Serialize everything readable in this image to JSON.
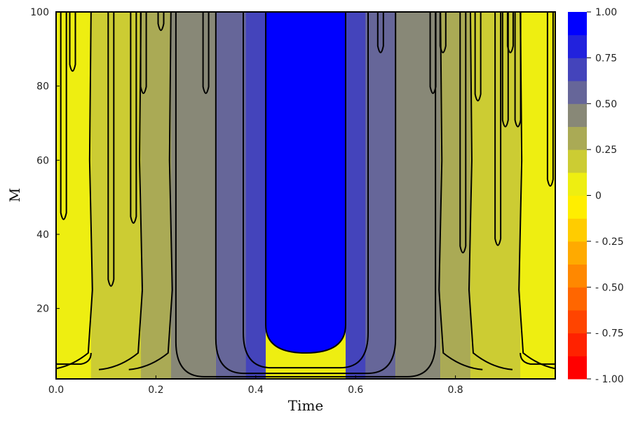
{
  "chart_data": {
    "type": "heatmap",
    "title": "",
    "xlabel": "Time",
    "ylabel": "M",
    "xlim": [
      0,
      1
    ],
    "ylim": [
      1,
      100
    ],
    "x_ticks": [
      0.0,
      0.2,
      0.4,
      0.6,
      0.8
    ],
    "x_tick_labels": [
      "0.0",
      "0.2",
      "0.4",
      "0.6",
      "0.8"
    ],
    "y_ticks": [
      20,
      40,
      60,
      80,
      100
    ],
    "y_tick_labels": [
      "20",
      "40",
      "60",
      "80",
      "100"
    ],
    "grid": false,
    "legend": "none",
    "colorbar": {
      "range": [
        -1,
        1
      ],
      "levels": [
        -1.0,
        -0.875,
        -0.75,
        -0.625,
        -0.5,
        -0.375,
        -0.25,
        -0.125,
        0.0,
        0.125,
        0.25,
        0.375,
        0.5,
        0.625,
        0.75,
        0.875,
        1.0
      ],
      "colors": [
        "#ff0000",
        "#ff2200",
        "#ff4400",
        "#ff6600",
        "#ff8800",
        "#ffaa00",
        "#ffcc00",
        "#ffee00",
        "#eeee11",
        "#cccc33",
        "#aaaa55",
        "#888877",
        "#666699",
        "#4444bb",
        "#2222dd",
        "#0000ff"
      ],
      "tick_values": [
        1.0,
        0.75,
        0.5,
        0.25,
        0.0,
        -0.25,
        -0.5,
        -0.75,
        -1.0
      ],
      "tick_labels": [
        "1.00",
        "0.75",
        "0.50",
        "0.25",
        "0",
        "- 0.25",
        "- 0.50",
        "- 0.75",
        "- 1.00"
      ]
    },
    "field": {
      "description_of_values": "value ~ cos(2*pi*Time) band pattern, constant along M except near M=1",
      "bands": [
        {
          "x_from": 0.0,
          "x_to": 0.07,
          "color": "#eeee11"
        },
        {
          "x_from": 0.07,
          "x_to": 0.17,
          "color": "#cccc33"
        },
        {
          "x_from": 0.17,
          "x_to": 0.23,
          "color": "#aaaa55"
        },
        {
          "x_from": 0.23,
          "x_to": 0.32,
          "color": "#888877"
        },
        {
          "x_from": 0.32,
          "x_to": 0.38,
          "color": "#666699"
        },
        {
          "x_from": 0.38,
          "x_to": 0.42,
          "color": "#4444bb"
        },
        {
          "x_from": 0.42,
          "x_to": 0.58,
          "color": "#0000ff"
        },
        {
          "x_from": 0.58,
          "x_to": 0.62,
          "color": "#4444bb"
        },
        {
          "x_from": 0.62,
          "x_to": 0.68,
          "color": "#666699"
        },
        {
          "x_from": 0.68,
          "x_to": 0.77,
          "color": "#888877"
        },
        {
          "x_from": 0.77,
          "x_to": 0.83,
          "color": "#aaaa55"
        },
        {
          "x_from": 0.83,
          "x_to": 0.93,
          "color": "#cccc33"
        },
        {
          "x_from": 0.93,
          "x_to": 1.0,
          "color": "#eeee11"
        }
      ]
    }
  }
}
